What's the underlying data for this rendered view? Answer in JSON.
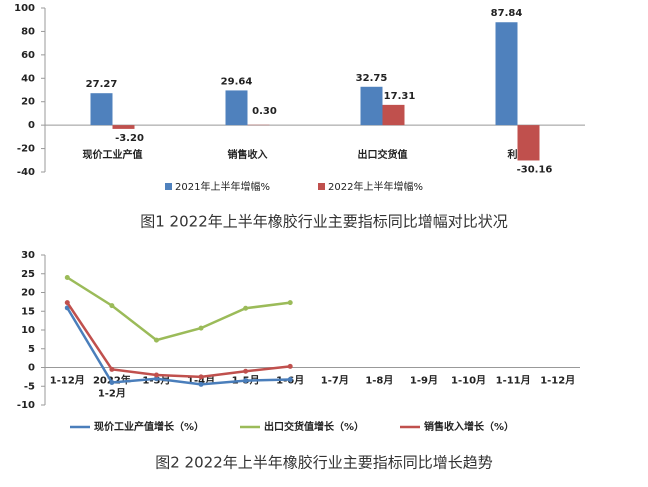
{
  "chart_data": [
    {
      "type": "bar",
      "title": "图1 2022年上半年橡胶行业主要指标同比增幅对比状况",
      "categories": [
        "现价工业产值",
        "销售收入",
        "出口交货值",
        "利润"
      ],
      "series": [
        {
          "name": "2021年上半年增幅%",
          "color": "#4f81bd",
          "values": [
            27.27,
            29.64,
            32.75,
            87.84
          ]
        },
        {
          "name": "2022年上半年增幅%",
          "color": "#c0504d",
          "values": [
            -3.2,
            0.3,
            17.31,
            -30.16
          ],
          "value_labels": [
            "-3.20",
            "0.30",
            "17.31",
            "-30.16"
          ]
        }
      ],
      "ylim": [
        -40,
        100
      ],
      "yticks": [
        -40,
        -20,
        0,
        20,
        40,
        60,
        80,
        100
      ],
      "grid": false
    },
    {
      "type": "line",
      "title": "图2 2022年上半年橡胶行业主要指标同比增长趋势",
      "categories": [
        "1-12月",
        "2022年\n1-2月",
        "1-3月",
        "1-4月",
        "1-5月",
        "1-6月",
        "1-7月",
        "1-8月",
        "1-9月",
        "1-10月",
        "1-11月",
        "1-12月"
      ],
      "series": [
        {
          "name": "现价工业产值增长（%）",
          "color": "#4a7ebb",
          "values": [
            15.9,
            -4,
            -3,
            -4.5,
            -3.5,
            -3.2,
            null,
            null,
            null,
            null,
            null,
            null
          ]
        },
        {
          "name": "出口交货值增长（%）",
          "color": "#9bbb59",
          "values": [
            24,
            16.5,
            7.3,
            10.5,
            15.8,
            17.3,
            null,
            null,
            null,
            null,
            null,
            null
          ]
        },
        {
          "name": "销售收入增长（%）",
          "color": "#c0504d",
          "values": [
            17.3,
            -0.5,
            -2,
            -2.5,
            -1,
            0.3,
            null,
            null,
            null,
            null,
            null,
            null
          ]
        }
      ],
      "ylim": [
        -10,
        30
      ],
      "yticks": [
        -10,
        -5,
        0,
        5,
        10,
        15,
        20,
        25,
        30
      ],
      "grid": false
    }
  ]
}
